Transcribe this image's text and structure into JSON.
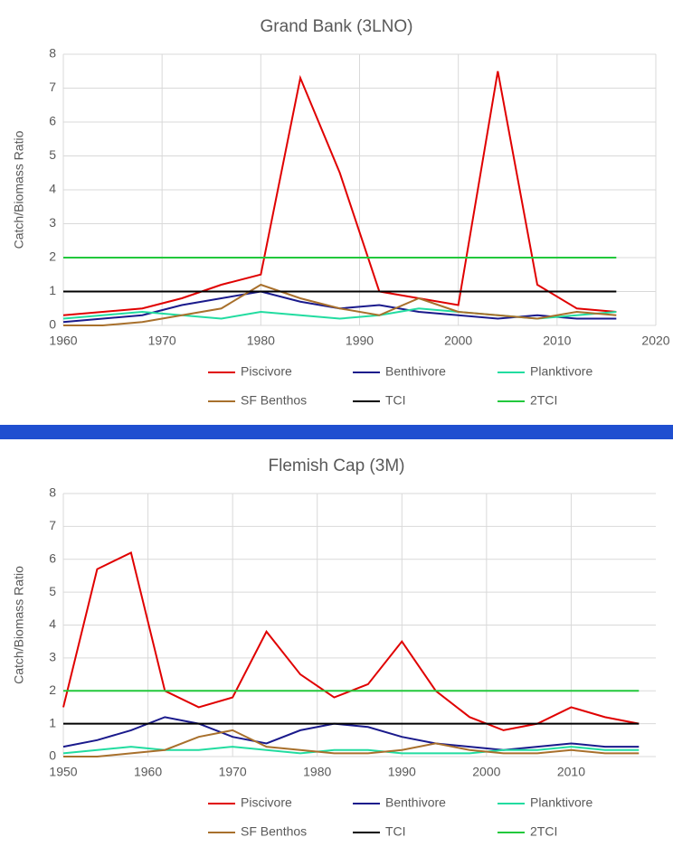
{
  "chart_data": [
    {
      "type": "line",
      "title": "Grand Bank (3LNO)",
      "y_label": "Catch/Biomass Ratio",
      "x": [
        1960,
        1964,
        1968,
        1972,
        1976,
        1980,
        1984,
        1988,
        1992,
        1996,
        2000,
        2004,
        2008,
        2012,
        2016
      ],
      "xlim": [
        1960,
        2020
      ],
      "xticks": [
        1960,
        1970,
        1980,
        1990,
        2000,
        2010,
        2020
      ],
      "ylim": [
        0,
        8
      ],
      "yticks": [
        0,
        1,
        2,
        3,
        4,
        5,
        6,
        7,
        8
      ],
      "grid": true,
      "series": [
        {
          "name": "Piscivore",
          "color": "#e00000",
          "values": [
            0.3,
            0.4,
            0.5,
            0.8,
            1.2,
            1.5,
            7.3,
            4.5,
            1.0,
            0.8,
            0.6,
            7.5,
            1.2,
            0.5,
            0.4
          ]
        },
        {
          "name": "Benthivore",
          "color": "#1a1a8c",
          "values": [
            0.1,
            0.2,
            0.3,
            0.6,
            0.8,
            1.0,
            0.7,
            0.5,
            0.6,
            0.4,
            0.3,
            0.2,
            0.3,
            0.2,
            0.2
          ]
        },
        {
          "name": "Planktivore",
          "color": "#22dca0",
          "values": [
            0.2,
            0.3,
            0.4,
            0.3,
            0.2,
            0.4,
            0.3,
            0.2,
            0.3,
            0.5,
            0.4,
            0.3,
            0.2,
            0.3,
            0.4
          ]
        },
        {
          "name": "SF Benthos",
          "color": "#a8702c",
          "values": [
            0,
            0,
            0.1,
            0.3,
            0.5,
            1.2,
            0.8,
            0.5,
            0.3,
            0.8,
            0.4,
            0.3,
            0.2,
            0.4,
            0.3
          ]
        },
        {
          "name": "TCI",
          "color": "#000000",
          "values": [
            1,
            1,
            1,
            1,
            1,
            1,
            1,
            1,
            1,
            1,
            1,
            1,
            1,
            1,
            1
          ]
        },
        {
          "name": "2TCI",
          "color": "#22c83c",
          "values": [
            2,
            2,
            2,
            2,
            2,
            2,
            2,
            2,
            2,
            2,
            2,
            2,
            2,
            2,
            2
          ]
        }
      ]
    },
    {
      "type": "line",
      "title": "Flemish Cap (3M)",
      "y_label": "Catch/Biomass Ratio",
      "x": [
        1950,
        1954,
        1958,
        1962,
        1966,
        1970,
        1974,
        1978,
        1982,
        1986,
        1990,
        1994,
        1998,
        2002,
        2006,
        2010,
        2014,
        2018
      ],
      "xlim": [
        1950,
        2020
      ],
      "xticks": [
        1950,
        1960,
        1970,
        1980,
        1990,
        2000,
        2010
      ],
      "ylim": [
        0,
        8
      ],
      "yticks": [
        0,
        1,
        2,
        3,
        4,
        5,
        6,
        7,
        8
      ],
      "grid": true,
      "series": [
        {
          "name": "Piscivore",
          "color": "#e00000",
          "values": [
            1.5,
            5.7,
            6.2,
            2.0,
            1.5,
            1.8,
            3.8,
            2.5,
            1.8,
            2.2,
            3.5,
            2.0,
            1.2,
            0.8,
            1.0,
            1.5,
            1.2,
            1.0
          ]
        },
        {
          "name": "Benthivore",
          "color": "#1a1a8c",
          "values": [
            0.3,
            0.5,
            0.8,
            1.2,
            1.0,
            0.6,
            0.4,
            0.8,
            1.0,
            0.9,
            0.6,
            0.4,
            0.3,
            0.2,
            0.3,
            0.4,
            0.3,
            0.3
          ]
        },
        {
          "name": "Planktivore",
          "color": "#22dca0",
          "values": [
            0.1,
            0.2,
            0.3,
            0.2,
            0.2,
            0.3,
            0.2,
            0.1,
            0.2,
            0.2,
            0.1,
            0.1,
            0.1,
            0.2,
            0.2,
            0.3,
            0.2,
            0.2
          ]
        },
        {
          "name": "SF Benthos",
          "color": "#a8702c",
          "values": [
            0,
            0,
            0.1,
            0.2,
            0.6,
            0.8,
            0.3,
            0.2,
            0.1,
            0.1,
            0.2,
            0.4,
            0.2,
            0.1,
            0.1,
            0.2,
            0.1,
            0.1
          ]
        },
        {
          "name": "TCI",
          "color": "#000000",
          "values": [
            1,
            1,
            1,
            1,
            1,
            1,
            1,
            1,
            1,
            1,
            1,
            1,
            1,
            1,
            1,
            1,
            1,
            1
          ]
        },
        {
          "name": "2TCI",
          "color": "#22c83c",
          "values": [
            2,
            2,
            2,
            2,
            2,
            2,
            2,
            2,
            2,
            2,
            2,
            2,
            2,
            2,
            2,
            2,
            2,
            2
          ]
        }
      ]
    }
  ]
}
